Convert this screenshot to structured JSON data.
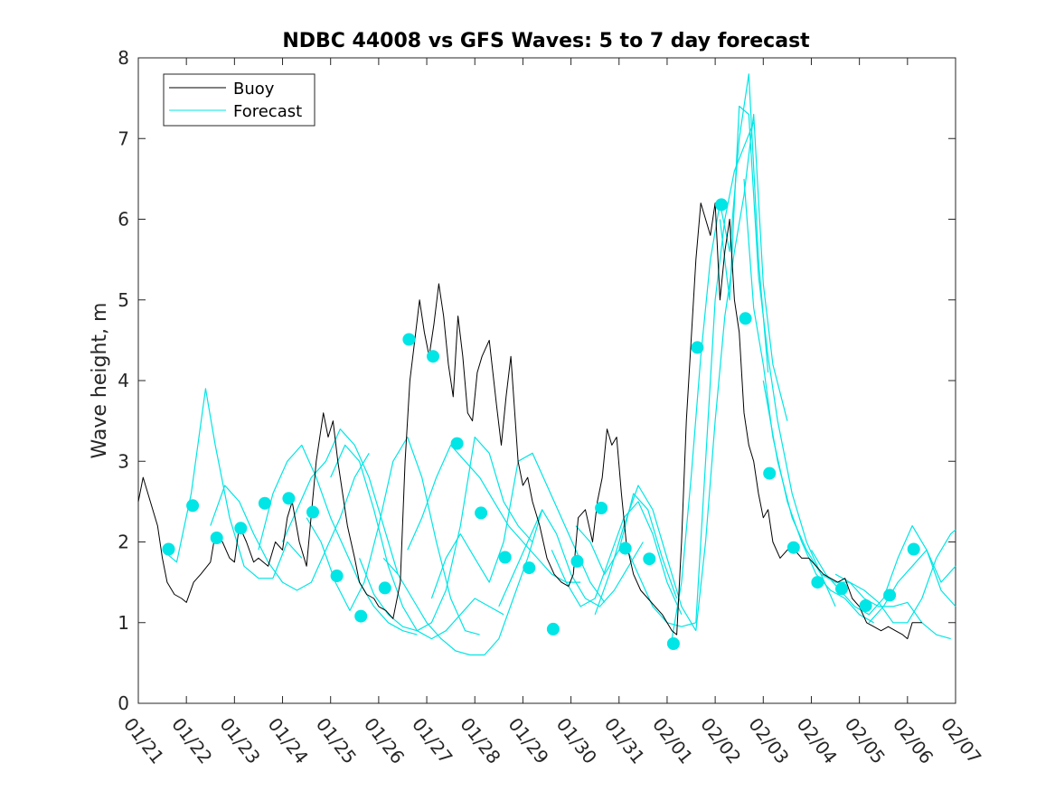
{
  "chart_data": {
    "type": "line",
    "title": "NDBC 44008 vs GFS Waves: 5 to 7 day forecast",
    "xlabel": "",
    "ylabel": "Wave height, m",
    "xlim": [
      0,
      17
    ],
    "ylim": [
      0,
      8
    ],
    "xticks": [
      0,
      1,
      2,
      3,
      4,
      5,
      6,
      7,
      8,
      9,
      10,
      11,
      12,
      13,
      14,
      15,
      16,
      17
    ],
    "xtick_labels": [
      "01/21",
      "01/22",
      "01/23",
      "01/24",
      "01/25",
      "01/26",
      "01/27",
      "01/28",
      "01/29",
      "01/30",
      "01/31",
      "02/01",
      "02/02",
      "02/03",
      "02/04",
      "02/05",
      "02/06",
      "02/07"
    ],
    "yticks": [
      0,
      1,
      2,
      3,
      4,
      5,
      6,
      7,
      8
    ],
    "ytick_labels": [
      "0",
      "1",
      "2",
      "3",
      "4",
      "5",
      "6",
      "7",
      "8"
    ],
    "legend": {
      "position": "top-left",
      "entries": [
        {
          "label": "Buoy",
          "color": "#000000"
        },
        {
          "label": "Forecast",
          "color": "#00e5e5"
        }
      ]
    },
    "colors": {
      "buoy": "#000000",
      "forecast": "#00e5e5",
      "marker": "#00e5e5"
    },
    "buoy_series": {
      "name": "Buoy",
      "x": [
        0.0,
        0.1,
        0.25,
        0.4,
        0.5,
        0.6,
        0.75,
        0.9,
        1.0,
        1.15,
        1.3,
        1.5,
        1.6,
        1.75,
        1.9,
        2.0,
        2.1,
        2.25,
        2.4,
        2.5,
        2.7,
        2.85,
        3.0,
        3.1,
        3.2,
        3.35,
        3.5,
        3.7,
        3.85,
        3.95,
        4.05,
        4.15,
        4.25,
        4.35,
        4.5,
        4.6,
        4.75,
        4.9,
        5.0,
        5.15,
        5.3,
        5.45,
        5.55,
        5.65,
        5.75,
        5.85,
        5.95,
        6.05,
        6.15,
        6.25,
        6.35,
        6.45,
        6.55,
        6.65,
        6.75,
        6.85,
        6.95,
        7.05,
        7.15,
        7.3,
        7.45,
        7.55,
        7.65,
        7.75,
        7.9,
        8.0,
        8.1,
        8.2,
        8.35,
        8.5,
        8.65,
        8.8,
        8.95,
        9.05,
        9.15,
        9.3,
        9.45,
        9.55,
        9.65,
        9.75,
        9.85,
        9.95,
        10.05,
        10.15,
        10.3,
        10.45,
        10.6,
        10.75,
        10.9,
        11.0,
        11.1,
        11.2,
        11.3,
        11.4,
        11.5,
        11.6,
        11.7,
        11.8,
        11.9,
        12.0,
        12.1,
        12.2,
        12.3,
        12.4,
        12.5,
        12.6,
        12.7,
        12.8,
        12.9,
        13.0,
        13.1,
        13.2,
        13.35,
        13.5,
        13.65,
        13.8,
        13.95,
        14.1,
        14.25,
        14.4,
        14.55,
        14.7,
        14.85,
        15.0,
        15.15,
        15.3,
        15.45,
        15.6,
        15.75,
        15.9,
        16.0,
        16.1,
        16.2,
        16.3
      ],
      "y": [
        2.5,
        2.8,
        2.5,
        2.2,
        1.8,
        1.5,
        1.35,
        1.3,
        1.25,
        1.5,
        1.6,
        1.75,
        2.1,
        2.0,
        1.8,
        1.75,
        2.2,
        2.0,
        1.75,
        1.8,
        1.7,
        2.0,
        1.9,
        2.3,
        2.5,
        2.0,
        1.7,
        3.0,
        3.6,
        3.3,
        3.5,
        3.0,
        2.6,
        2.2,
        1.8,
        1.5,
        1.35,
        1.3,
        1.2,
        1.15,
        1.05,
        1.5,
        3.0,
        4.0,
        4.5,
        5.0,
        4.6,
        4.3,
        4.7,
        5.2,
        4.8,
        4.2,
        3.8,
        4.8,
        4.3,
        3.6,
        3.5,
        4.1,
        4.3,
        4.5,
        3.7,
        3.2,
        3.8,
        4.3,
        3.0,
        2.7,
        2.8,
        2.5,
        2.2,
        1.8,
        1.6,
        1.5,
        1.45,
        1.6,
        2.3,
        2.4,
        2.0,
        2.5,
        2.8,
        3.4,
        3.2,
        3.3,
        2.6,
        2.0,
        1.6,
        1.4,
        1.3,
        1.2,
        1.1,
        1.0,
        0.9,
        0.85,
        2.0,
        3.5,
        4.5,
        5.5,
        6.2,
        6.0,
        5.8,
        6.2,
        5.0,
        5.6,
        6.0,
        5.0,
        4.6,
        3.6,
        3.2,
        3.0,
        2.6,
        2.3,
        2.4,
        2.0,
        1.8,
        1.9,
        1.9,
        1.8,
        1.8,
        1.7,
        1.6,
        1.55,
        1.5,
        1.55,
        1.3,
        1.2,
        1.0,
        0.95,
        0.9,
        0.95,
        0.9,
        0.85,
        0.8,
        1.0,
        1.0,
        1.0
      ]
    },
    "forecast_series": [
      {
        "name": "Forecast run 1",
        "x": [
          0.5,
          0.8,
          1.1,
          1.4,
          1.6,
          1.9,
          2.2,
          2.5,
          2.8,
          3.1,
          3.4
        ],
        "y": [
          1.9,
          1.75,
          2.6,
          3.9,
          3.2,
          2.3,
          1.7,
          1.55,
          1.55,
          2.0,
          1.8
        ]
      },
      {
        "name": "Forecast run 2",
        "x": [
          1.5,
          1.8,
          2.1,
          2.4,
          2.7,
          3.0,
          3.3,
          3.6,
          3.9,
          4.2,
          4.5,
          4.8
        ],
        "y": [
          2.2,
          2.7,
          2.5,
          2.1,
          1.75,
          1.5,
          1.4,
          1.5,
          1.9,
          2.3,
          2.8,
          3.1
        ]
      },
      {
        "name": "Forecast run 3",
        "x": [
          2.5,
          2.8,
          3.1,
          3.4,
          3.7,
          4.0,
          4.3,
          4.6,
          4.9,
          5.2,
          5.5,
          5.8
        ],
        "y": [
          1.9,
          2.6,
          3.0,
          3.2,
          2.8,
          2.3,
          1.9,
          1.5,
          1.2,
          1.0,
          0.9,
          0.85
        ]
      },
      {
        "name": "Forecast run 4",
        "x": [
          3.0,
          3.3,
          3.6,
          3.9,
          4.2,
          4.5,
          4.8,
          5.1,
          5.4
        ],
        "y": [
          2.0,
          2.4,
          2.8,
          3.0,
          3.4,
          3.2,
          2.8,
          2.2,
          1.6
        ]
      },
      {
        "name": "Forecast run 5",
        "x": [
          3.5,
          3.8,
          4.1,
          4.4,
          4.7,
          5.0,
          5.3,
          5.6,
          5.9,
          6.2,
          6.5,
          6.8,
          7.1
        ],
        "y": [
          2.3,
          2.0,
          1.5,
          1.15,
          1.5,
          2.2,
          3.0,
          3.3,
          2.8,
          2.0,
          1.3,
          0.9,
          0.85
        ]
      },
      {
        "name": "Forecast run 6",
        "x": [
          4.0,
          4.3,
          4.6,
          4.9,
          5.2,
          5.5,
          5.8,
          6.1,
          6.4,
          6.7,
          7.0,
          7.3,
          7.6
        ],
        "y": [
          2.8,
          3.2,
          3.0,
          2.4,
          1.7,
          1.2,
          0.9,
          0.8,
          0.9,
          1.1,
          1.3,
          1.2,
          1.1
        ]
      },
      {
        "name": "Forecast run 7",
        "x": [
          4.6,
          4.9,
          5.2,
          5.5,
          5.8,
          6.1,
          6.4,
          6.7,
          7.0,
          7.3,
          7.6,
          7.9,
          8.2
        ],
        "y": [
          1.8,
          1.35,
          1.1,
          0.95,
          0.9,
          1.0,
          1.4,
          2.2,
          3.3,
          3.1,
          2.5,
          2.2,
          2.0
        ]
      },
      {
        "name": "Forecast run 8",
        "x": [
          5.1,
          5.4,
          5.7,
          6.0,
          6.3,
          6.6,
          6.9,
          7.2,
          7.5,
          7.8,
          8.1,
          8.4
        ],
        "y": [
          1.8,
          1.6,
          1.3,
          1.0,
          0.8,
          0.65,
          0.6,
          0.6,
          0.8,
          1.3,
          1.8,
          2.4
        ]
      },
      {
        "name": "Forecast run 9",
        "x": [
          5.6,
          5.9,
          6.2,
          6.5,
          6.8,
          7.1,
          7.4,
          7.7,
          8.0,
          8.3,
          8.6,
          8.9,
          9.2
        ],
        "y": [
          1.9,
          2.3,
          2.8,
          3.2,
          3.0,
          2.8,
          2.5,
          2.2,
          2.0,
          1.8,
          1.6,
          1.5,
          1.5
        ]
      },
      {
        "name": "Forecast run 10",
        "x": [
          6.1,
          6.4,
          6.7,
          7.0,
          7.3,
          7.6,
          7.9,
          8.2,
          8.5,
          8.8,
          9.1,
          9.4,
          9.7
        ],
        "y": [
          1.3,
          1.8,
          2.1,
          1.8,
          1.5,
          2.0,
          3.0,
          3.1,
          2.7,
          2.3,
          1.9,
          1.5,
          1.25
        ]
      },
      {
        "name": "Forecast run 11",
        "x": [
          7.5,
          7.8,
          8.1,
          8.4,
          8.7,
          9.0,
          9.3,
          9.6,
          9.9,
          10.2,
          10.5
        ],
        "y": [
          1.2,
          1.6,
          2.0,
          2.4,
          2.1,
          1.6,
          1.3,
          1.2,
          1.4,
          1.7,
          2.0
        ]
      },
      {
        "name": "Forecast run 12",
        "x": [
          8.6,
          8.9,
          9.2,
          9.5,
          9.8,
          10.1,
          10.4,
          10.7,
          11.0,
          11.3
        ],
        "y": [
          1.9,
          1.5,
          1.2,
          1.3,
          1.8,
          2.3,
          2.5,
          2.1,
          1.5,
          1.1
        ]
      },
      {
        "name": "Forecast run 13",
        "x": [
          9.1,
          9.4,
          9.7,
          10.0,
          10.3,
          10.6,
          10.9,
          11.2
        ],
        "y": [
          2.2,
          2.0,
          1.6,
          1.9,
          2.6,
          2.4,
          1.8,
          1.3
        ]
      },
      {
        "name": "Forecast run 14",
        "x": [
          9.5,
          9.8,
          10.1,
          10.4,
          10.7,
          11.0,
          11.3,
          11.6
        ],
        "y": [
          1.1,
          1.6,
          2.2,
          2.7,
          2.4,
          1.8,
          1.2,
          0.9
        ]
      },
      {
        "name": "Forecast run 15",
        "x": [
          10.1,
          10.4,
          10.7,
          11.0,
          11.3,
          11.6,
          11.8,
          12.0,
          12.2,
          12.4,
          12.6,
          12.8
        ],
        "y": [
          2.0,
          1.6,
          1.2,
          1.0,
          0.95,
          1.0,
          3.0,
          5.0,
          6.0,
          6.6,
          6.9,
          7.2
        ]
      },
      {
        "name": "Forecast run 16",
        "x": [
          11.1,
          11.3,
          11.5,
          11.7,
          11.9,
          12.1,
          12.3,
          12.5,
          12.7,
          12.9,
          13.1
        ],
        "y": [
          0.8,
          1.5,
          2.8,
          4.3,
          5.5,
          6.2,
          5.6,
          7.0,
          7.8,
          5.5,
          4.1
        ]
      },
      {
        "name": "Forecast run 17",
        "x": [
          11.6,
          11.8,
          12.0,
          12.2,
          12.4,
          12.6,
          12.8,
          13.0,
          13.2,
          13.5
        ],
        "y": [
          0.9,
          2.0,
          3.5,
          4.8,
          5.6,
          6.3,
          7.3,
          5.2,
          4.2,
          3.5
        ]
      },
      {
        "name": "Forecast run 18",
        "x": [
          12.1,
          12.3,
          12.5,
          12.7,
          12.9,
          13.1,
          13.3,
          13.6,
          13.9,
          14.2,
          14.5
        ],
        "y": [
          6.0,
          5.0,
          7.4,
          7.3,
          5.3,
          4.3,
          3.5,
          2.6,
          2.0,
          1.6,
          1.2
        ]
      },
      {
        "name": "Forecast run 19",
        "x": [
          12.6,
          12.8,
          13.0,
          13.2,
          13.5,
          13.8,
          14.1,
          14.4,
          14.7,
          15.0,
          15.3
        ],
        "y": [
          6.5,
          4.9,
          4.2,
          3.3,
          2.5,
          2.0,
          1.6,
          1.4,
          1.3,
          1.1,
          1.0
        ]
      },
      {
        "name": "Forecast run 20",
        "x": [
          13.0,
          13.3,
          13.6,
          13.9,
          14.2,
          14.5,
          14.8,
          15.1,
          15.4,
          15.7,
          16.0,
          16.3,
          16.6,
          16.9
        ],
        "y": [
          4.0,
          3.0,
          2.3,
          1.9,
          1.6,
          1.5,
          1.5,
          1.3,
          1.2,
          1.2,
          1.25,
          1.0,
          0.85,
          0.8
        ]
      },
      {
        "name": "Forecast run 21",
        "x": [
          14.0,
          14.3,
          14.6,
          14.9,
          15.2,
          15.5,
          15.8,
          16.1,
          16.4,
          16.7,
          17.0
        ],
        "y": [
          1.9,
          1.6,
          1.4,
          1.2,
          1.1,
          1.3,
          1.8,
          2.2,
          1.9,
          1.5,
          1.7
        ]
      },
      {
        "name": "Forecast run 22",
        "x": [
          14.5,
          14.8,
          15.1,
          15.4,
          15.7,
          16.0,
          16.3,
          16.6,
          16.9,
          17.0
        ],
        "y": [
          1.6,
          1.5,
          1.4,
          1.25,
          1.0,
          1.0,
          1.3,
          1.8,
          2.1,
          2.15
        ]
      },
      {
        "name": "Forecast run 23",
        "x": [
          15.2,
          15.5,
          15.8,
          16.1,
          16.4,
          16.7,
          17.0
        ],
        "y": [
          1.0,
          1.2,
          1.5,
          1.7,
          1.9,
          1.4,
          1.2
        ]
      }
    ],
    "forecast_markers": {
      "name": "Forecast markers",
      "x": [
        0.63,
        1.13,
        1.63,
        2.13,
        2.63,
        3.13,
        3.63,
        4.13,
        4.63,
        5.13,
        5.63,
        6.13,
        6.63,
        7.13,
        7.63,
        8.13,
        8.63,
        9.13,
        9.63,
        10.13,
        10.63,
        11.13,
        11.63,
        12.13,
        12.63,
        13.13,
        13.63,
        14.13,
        14.63,
        15.13,
        15.63,
        16.13
      ],
      "y": [
        1.91,
        2.45,
        2.05,
        2.17,
        2.48,
        2.54,
        2.37,
        1.58,
        1.08,
        1.43,
        4.51,
        4.3,
        3.22,
        2.36,
        1.81,
        1.68,
        0.92,
        1.76,
        2.42,
        1.92,
        1.79,
        0.74,
        4.41,
        6.18,
        4.77,
        2.85,
        1.93,
        1.5,
        1.42,
        1.21,
        1.34,
        1.91
      ]
    }
  }
}
